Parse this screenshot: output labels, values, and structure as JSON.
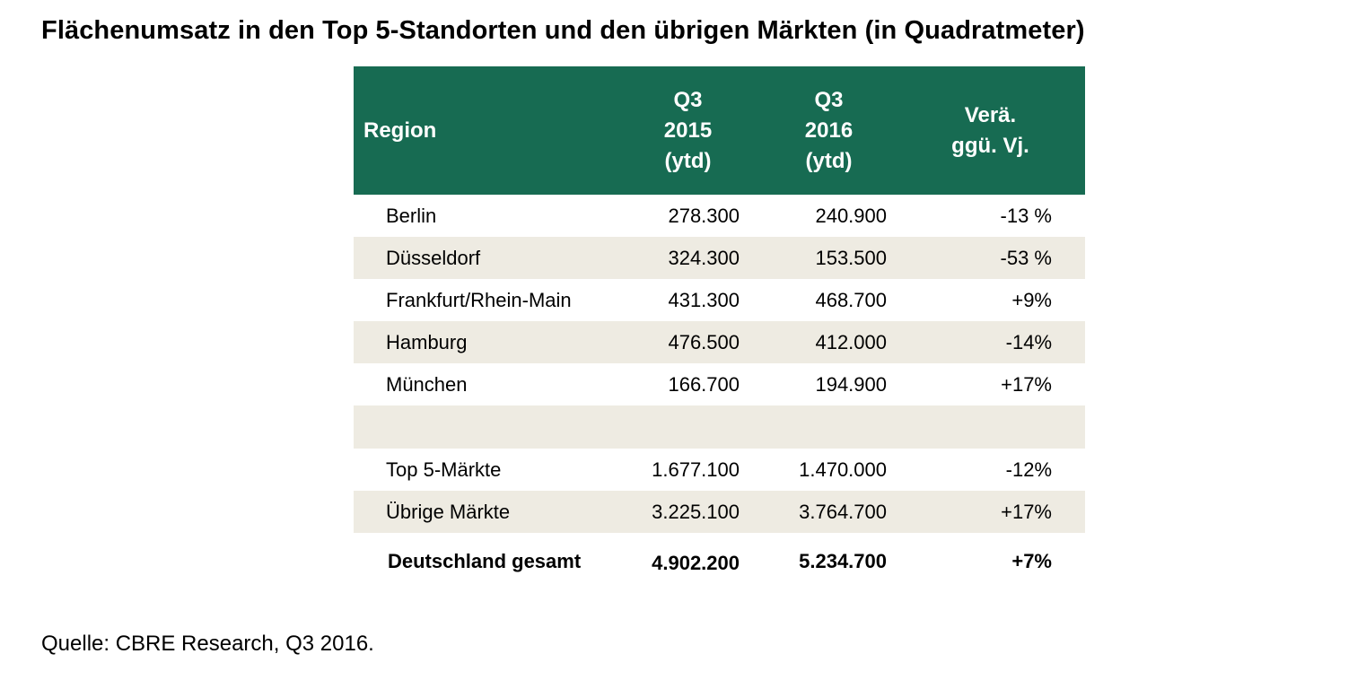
{
  "document": {
    "title": "Flächenumsatz in den Top 5-Standorten und den übrigen Märkten (in Quadratmeter)",
    "source": "Quelle: CBRE Research, Q3 2016."
  },
  "table": {
    "header": {
      "region": "Region",
      "y2015": [
        "Q3",
        "2015",
        "(ytd)"
      ],
      "y2016": [
        "Q3",
        "2016",
        "(ytd)"
      ],
      "change": [
        "Verä.",
        "ggü. Vj."
      ]
    },
    "rows": [
      {
        "region": "Berlin",
        "y2015": "278.300",
        "y2016": "240.900",
        "change": "-13 %"
      },
      {
        "region": "Düsseldorf",
        "y2015": "324.300",
        "y2016": "153.500",
        "change": "-53 %"
      },
      {
        "region": "Frankfurt/Rhein-Main",
        "y2015": "431.300",
        "y2016": "468.700",
        "change": "+9%"
      },
      {
        "region": "Hamburg",
        "y2015": "476.500",
        "y2016": "412.000",
        "change": "-14%"
      },
      {
        "region": "München",
        "y2015": "166.700",
        "y2016": "194.900",
        "change": "+17%"
      }
    ],
    "summary_rows": [
      {
        "region": "Top 5-Märkte",
        "y2015": "1.677.100",
        "y2016": "1.470.000",
        "change": "-12%"
      },
      {
        "region": "Übrige Märkte",
        "y2015": "3.225.100",
        "y2016": "3.764.700",
        "change": "+17%"
      }
    ],
    "total": {
      "region": "Deutschland gesamt",
      "y2015": "4.902.200",
      "y2016": "5.234.700",
      "change": "+7%"
    }
  },
  "colors": {
    "header_bg": "#176b52",
    "band_bg": "#eeebe2"
  }
}
